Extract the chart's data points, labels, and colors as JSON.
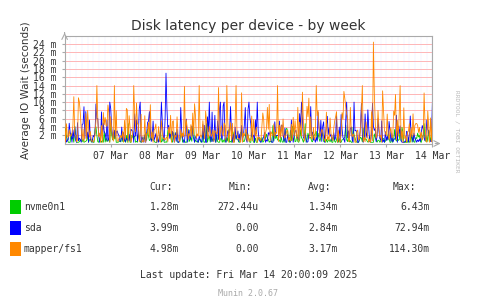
{
  "title": "Disk latency per device - by week",
  "ylabel": "Average IO Wait (seconds)",
  "background_color": "#ffffff",
  "plot_bg_color": "#ffffff",
  "grid_color": "#ff9999",
  "x_labels": [
    "07 Mar",
    "08 Mar",
    "09 Mar",
    "10 Mar",
    "11 Mar",
    "12 Mar",
    "13 Mar",
    "14 Mar"
  ],
  "x_tick_pos": [
    1,
    2,
    3,
    4,
    5,
    6,
    7,
    8
  ],
  "y_ticks": [
    2,
    4,
    6,
    8,
    10,
    12,
    14,
    16,
    18,
    20,
    22,
    24
  ],
  "y_tick_labels": [
    "2 m",
    "4 m",
    "6 m",
    "8 m",
    "10 m",
    "12 m",
    "14 m",
    "16 m",
    "18 m",
    "20 m",
    "22 m",
    "24 m"
  ],
  "ylim": [
    0,
    26
  ],
  "xlim": [
    0,
    8
  ],
  "series_names": [
    "nvme0n1",
    "sda",
    "mapper/fs1"
  ],
  "series_colors": [
    "#00cc00",
    "#0000ff",
    "#ff8800"
  ],
  "series_cur": [
    "1.28m",
    "3.99m",
    "4.98m"
  ],
  "series_min": [
    "272.44u",
    "0.00",
    "0.00"
  ],
  "series_avg": [
    "1.34m",
    "2.84m",
    "3.17m"
  ],
  "series_max": [
    "6.43m",
    "72.94m",
    "114.30m"
  ],
  "last_update": "Last update: Fri Mar 14 20:00:09 2025",
  "munin_version": "Munin 2.0.67",
  "rrdtool_label": "RRDTOOL / TOBI OETIKER"
}
